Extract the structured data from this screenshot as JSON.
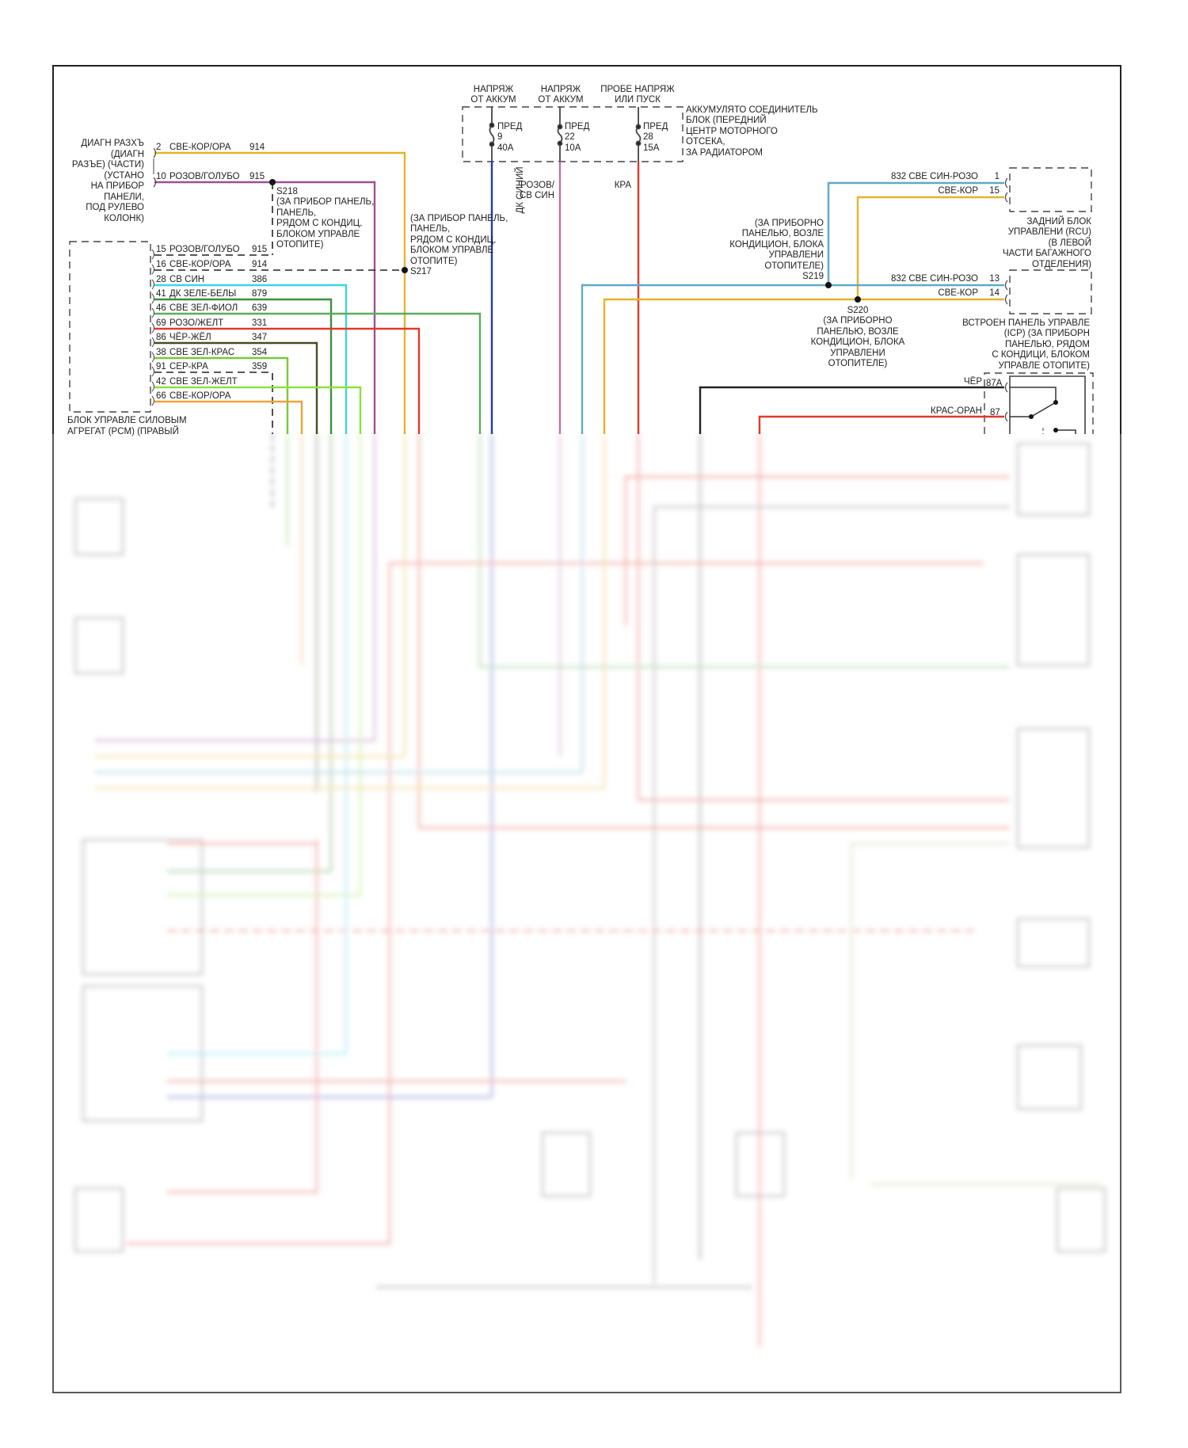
{
  "diagram": {
    "fuse_sources": [
      {
        "label": [
          "НАПРЯЖ",
          "ОТ АККУМ"
        ],
        "fuse": [
          "ПРЕД",
          "9",
          "40A"
        ]
      },
      {
        "label": [
          "НАПРЯЖ",
          "ОТ АККУМ"
        ],
        "fuse": [
          "ПРЕД",
          "22",
          "10A"
        ]
      },
      {
        "label": [
          "ПРОБЕ НАПРЯЖ",
          "ИЛИ ПУСК"
        ],
        "fuse": [
          "ПРЕД",
          "28",
          "15A"
        ]
      }
    ],
    "junction_block": [
      "АККУМУЛЯТО СОЕДИНИТЕЛЬ",
      "БЛОК (ПЕРЕДНИЙ",
      "ЦЕНТР МОТОРНОГО",
      "ОТСЕКА,",
      "ЗА РАДИАТОРОМ"
    ],
    "fuse_wires": {
      "blue": "ДК СИНИЙ",
      "pink": [
        "РОЗОВ/",
        "СВ СИН"
      ],
      "red": "КРА"
    },
    "diag_connector": {
      "label": [
        "ДИАГН РАЗХЪ",
        "(ДИАГН",
        "РАЗЪЕ) (ЧАСТИ)",
        "(УСТАНО",
        "НА ПРИБОР",
        "ПАНЕЛИ,",
        "ПОД РУЛЕВО",
        "КОЛОНК)"
      ],
      "pins": [
        {
          "pin": "2",
          "wire": "СВЕ-КОР/ОРА",
          "circuit": "914"
        },
        {
          "pin": "10",
          "wire": "РОЗОВ/ГОЛУБО",
          "circuit": "915"
        }
      ]
    },
    "s218": {
      "id": "S218",
      "label": [
        "(ЗА ПРИБОР ПАНЕЛЬ,",
        "ПАНЕЛЬ,",
        "РЯДОМ С КОНДИЦ,",
        "БЛОКОМ УПРАВЛЕ",
        "ОТОПИТЕ)"
      ]
    },
    "s217": {
      "id": "S217",
      "label": [
        "(ЗА ПРИБОР ПАНЕЛЬ,",
        "ПАНЕЛЬ,",
        "РЯДОМ С КОНДИЦ,",
        "БЛОКОМ УПРАВЛЕ",
        "ОТОПИТЕ)"
      ]
    },
    "pcm": {
      "label": [
        "БЛОК УПРАВЛЕ СИЛОВЫМ",
        "АГРЕГАТ (PCM) (ПРАВЫЙ"
      ],
      "pins": [
        {
          "pin": "15",
          "wire": "РОЗОВ/ГОЛУБО",
          "circuit": "915"
        },
        {
          "pin": "16",
          "wire": "СВЕ-КОР/ОРА",
          "circuit": "914"
        },
        {
          "pin": "28",
          "wire": "СВ СИН",
          "circuit": "386"
        },
        {
          "pin": "41",
          "wire": "ДК ЗЕЛЕ-БЕЛЫ",
          "circuit": "879"
        },
        {
          "pin": "46",
          "wire": "СВЕ ЗЕЛ-ФИОЛ",
          "circuit": "639"
        },
        {
          "pin": "69",
          "wire": "РОЗО/ЖЕЛТ",
          "circuit": "331"
        },
        {
          "pin": "86",
          "wire": "ЧЁР-ЖЁЛ",
          "circuit": "347"
        },
        {
          "pin": "38",
          "wire": "СВЕ ЗЕЛ-КРАС",
          "circuit": "354"
        },
        {
          "pin": "91",
          "wire": "СЕР-КРА",
          "circuit": "359"
        },
        {
          "pin": "42",
          "wire": "СВЕ ЗЕЛ-ЖЕЛТ",
          "circuit": ""
        },
        {
          "pin": "66",
          "wire": "СВЕ-КОР/ОРА",
          "circuit": ""
        }
      ]
    },
    "s219": {
      "id": "S219",
      "label": [
        "(ЗА ПРИБОРНО",
        "ПАНЕЛЬЮ, ВОЗЛЕ",
        "КОНДИЦИОН, БЛОКА",
        "УПРАВЛЕНИ",
        "ОТОПИТЕЛЕ)"
      ]
    },
    "s220": {
      "id": "S220",
      "label": [
        "(ЗА ПРИБОРНО",
        "ПАНЕЛЬЮ, ВОЗЛЕ",
        "КОНДИЦИОН, БЛОКА",
        "УПРАВЛЕНИ",
        "ОТОПИТЕЛЕ)"
      ]
    },
    "rcu": {
      "label": [
        "ЗАДНИЙ БЛОК",
        "УПРАВЛЕНИ (RCU)",
        "(В ЛЕВОЙ",
        "ЧАСТИ БАГАЖНОГО",
        "ОТДЕЛЕНИЯ)"
      ],
      "pins": [
        {
          "pin": "1",
          "wire": "832 СВЕ СИН-РОЗО"
        },
        {
          "pin": "15",
          "wire": "СВЕ-КОР"
        }
      ]
    },
    "icp": {
      "label": [
        "ВСТРОЕН ПАНЕЛЬ УПРАВЛЕ",
        "(ICP) (ЗА ПРИБОРН",
        "ПАНЕЛЬЮ, РЯДОМ",
        "С КОНДИЦИ, БЛОКОМ",
        "УПРАВЛЕ ОТОПИТЕ)"
      ],
      "pins": [
        {
          "pin": "13",
          "wire": "832 СВЕ СИН-РОЗО"
        },
        {
          "pin": "14",
          "wire": "СВЕ-КОР"
        }
      ]
    },
    "relay": {
      "pins": [
        {
          "pin": "87A",
          "wire": "ЧЁР"
        },
        {
          "pin": "87",
          "wire": "КРАС-ОРАН"
        }
      ]
    },
    "colors": {
      "yellow": "#e2b42a",
      "purple": "#9d4f98",
      "cyan": "#3dd3e8",
      "dark_green": "#3c8f3c",
      "green": "#5aae5a",
      "red": "#e0392c",
      "olive": "#4b4b1e",
      "light_green": "#78c83a",
      "bright_green": "#8fe03c",
      "orange": "#eea238",
      "blue": "#1f3ea8",
      "pink": "#b376ae",
      "black": "#222222",
      "steel_blue": "#5ea9c8"
    }
  }
}
